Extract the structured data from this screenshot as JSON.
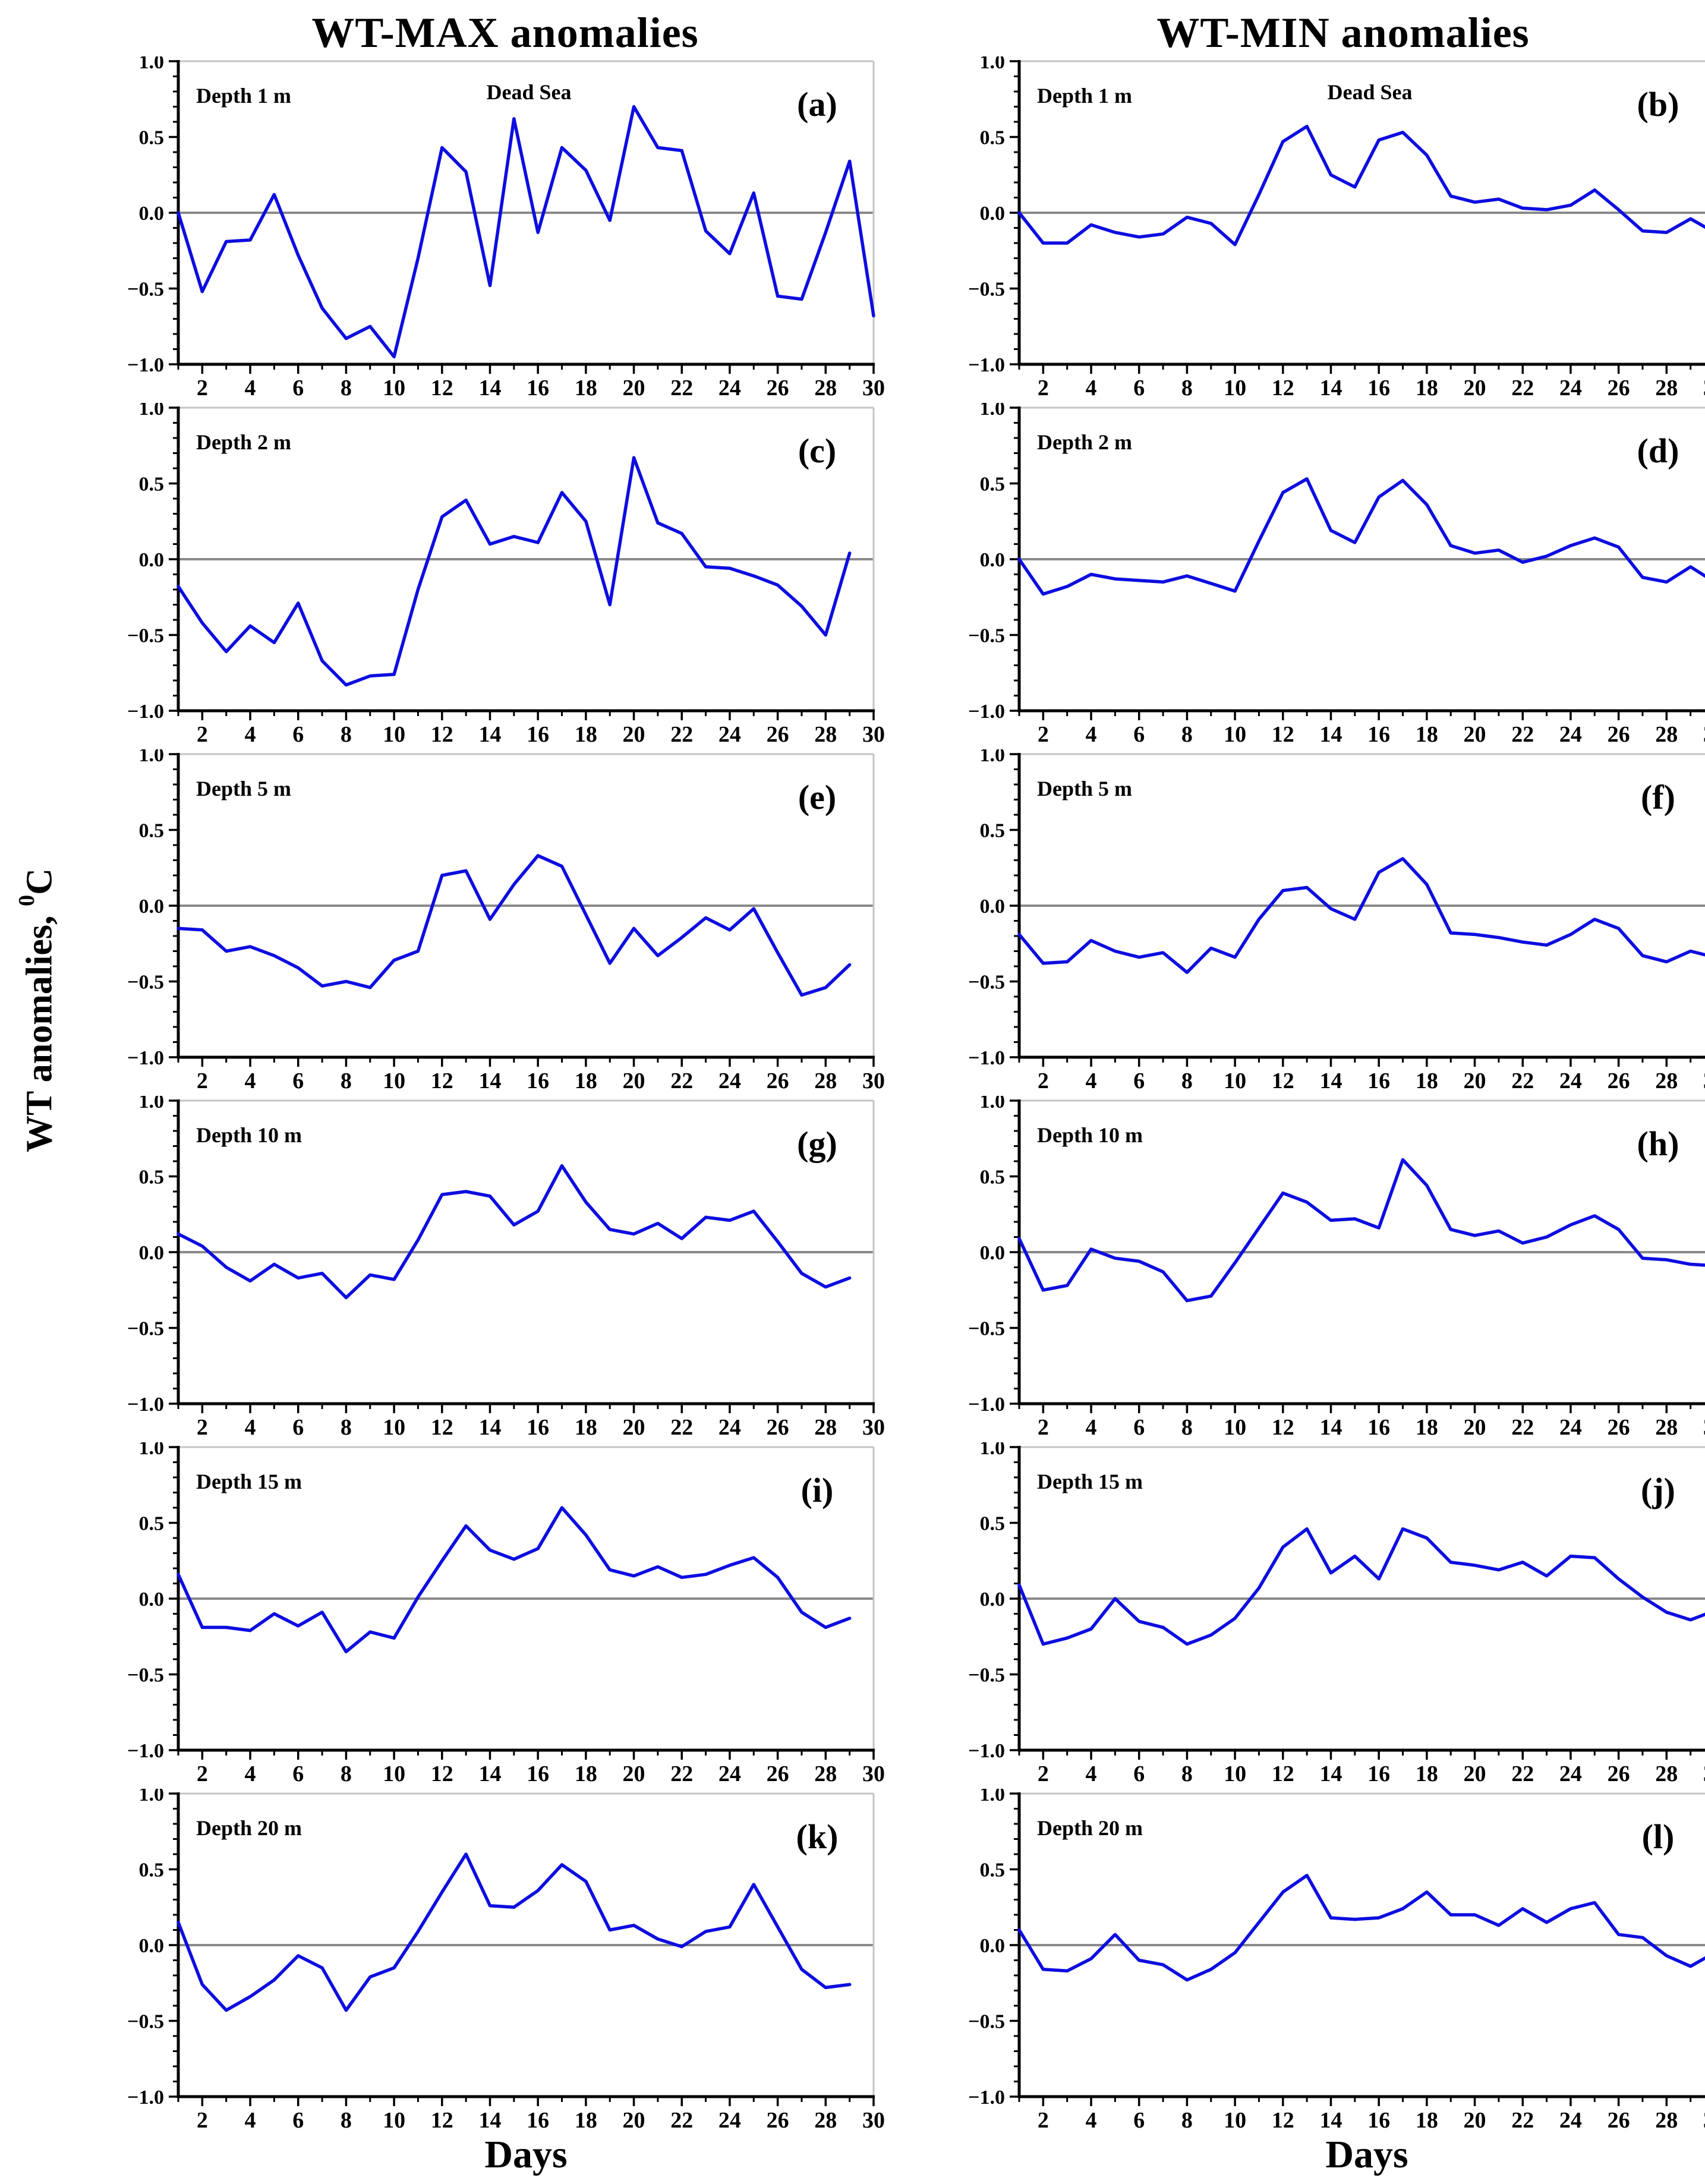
{
  "columns": [
    {
      "title": "WT-MAX anomalies"
    },
    {
      "title": "WT-MIN anomalies"
    }
  ],
  "y_axis_title": {
    "prefix": "WT anomalies, ",
    "sup": "0",
    "unit": "C"
  },
  "x_axis_title": "Days",
  "axes": {
    "y_tick_labels": [
      "1.0",
      "0.5",
      "0.0",
      "−0.5",
      "−1.0"
    ],
    "y_tick_values": [
      1.0,
      0.5,
      0.0,
      -0.5,
      -1.0
    ],
    "x_tick_labels": [
      "2",
      "4",
      "6",
      "8",
      "10",
      "12",
      "14",
      "16",
      "18",
      "20",
      "22",
      "24",
      "26",
      "28",
      "30"
    ],
    "x_minor_days": [
      1,
      3,
      5,
      7,
      9,
      11,
      13,
      15,
      17,
      19,
      21,
      23,
      25,
      27,
      29
    ],
    "xlim": [
      1,
      30
    ],
    "ylim": [
      -1.0,
      1.0
    ],
    "y_minor_step": 0.1,
    "grid": "off"
  },
  "colors": {
    "line": "#0d0de0",
    "zero_line": "#8a8a8a",
    "axis": "#000000",
    "box_light": "#c4c4c4",
    "text": "#000000"
  },
  "chart_data": {
    "type": "line",
    "title_left": "WT-MAX anomalies",
    "title_right": "WT-MIN anomalies",
    "xlabel": "Days",
    "ylabel": "WT anomalies, 0C",
    "x_start": 1,
    "x_step": 1,
    "ylim": [
      -1.0,
      1.0
    ],
    "panels": [
      {
        "letter": "(a)",
        "depth_label": "Depth 1 m",
        "annotation": "Dead Sea",
        "column": "WT-MAX",
        "row": 0,
        "col": 0,
        "values": [
          0.0,
          -0.52,
          -0.19,
          -0.18,
          0.12,
          -0.28,
          -0.63,
          -0.83,
          -0.75,
          -0.95,
          -0.3,
          0.43,
          0.27,
          -0.48,
          0.62,
          -0.13,
          0.43,
          0.28,
          -0.05,
          0.7,
          0.43,
          0.41,
          -0.12,
          -0.27,
          0.13,
          -0.55,
          -0.57,
          -0.13,
          0.34,
          -0.68
        ]
      },
      {
        "letter": "(b)",
        "depth_label": "Depth 1 m",
        "annotation": "Dead Sea",
        "column": "WT-MIN",
        "row": 0,
        "col": 1,
        "values": [
          0.0,
          -0.2,
          -0.2,
          -0.08,
          -0.13,
          -0.16,
          -0.14,
          -0.03,
          -0.07,
          -0.21,
          0.12,
          0.47,
          0.57,
          0.25,
          0.17,
          0.48,
          0.53,
          0.38,
          0.11,
          0.07,
          0.09,
          0.03,
          0.02,
          0.05,
          0.15,
          0.02,
          -0.12,
          -0.13,
          -0.04,
          -0.13
        ]
      },
      {
        "letter": "(c)",
        "depth_label": "Depth 2 m",
        "annotation": "",
        "column": "WT-MAX",
        "row": 1,
        "col": 0,
        "values": [
          -0.18,
          -0.42,
          -0.61,
          -0.44,
          -0.55,
          -0.29,
          -0.67,
          -0.83,
          -0.77,
          -0.76,
          -0.2,
          0.28,
          0.39,
          0.1,
          0.15,
          0.11,
          0.44,
          0.25,
          -0.3,
          0.67,
          0.24,
          0.17,
          -0.05,
          -0.06,
          -0.11,
          -0.17,
          -0.31,
          -0.5,
          0.04
        ]
      },
      {
        "letter": "(d)",
        "depth_label": "Depth 2 m",
        "annotation": "",
        "column": "WT-MIN",
        "row": 1,
        "col": 1,
        "values": [
          0.0,
          -0.23,
          -0.18,
          -0.1,
          -0.13,
          -0.14,
          -0.15,
          -0.11,
          -0.16,
          -0.21,
          0.12,
          0.44,
          0.53,
          0.19,
          0.11,
          0.41,
          0.52,
          0.36,
          0.09,
          0.04,
          0.06,
          -0.02,
          0.02,
          0.09,
          0.14,
          0.08,
          -0.12,
          -0.15,
          -0.05,
          -0.15
        ]
      },
      {
        "letter": "(e)",
        "depth_label": "Depth 5 m",
        "annotation": "",
        "column": "WT-MAX",
        "row": 2,
        "col": 0,
        "values": [
          -0.15,
          -0.16,
          -0.3,
          -0.27,
          -0.33,
          -0.41,
          -0.53,
          -0.5,
          -0.54,
          -0.36,
          -0.3,
          0.2,
          0.23,
          -0.09,
          0.14,
          0.33,
          0.26,
          -0.06,
          -0.38,
          -0.15,
          -0.33,
          -0.21,
          -0.08,
          -0.16,
          -0.02,
          -0.31,
          -0.59,
          -0.54,
          -0.39
        ]
      },
      {
        "letter": "(f)",
        "depth_label": "Depth 5 m",
        "annotation": "",
        "column": "WT-MIN",
        "row": 2,
        "col": 1,
        "values": [
          -0.19,
          -0.38,
          -0.37,
          -0.23,
          -0.3,
          -0.34,
          -0.31,
          -0.44,
          -0.28,
          -0.34,
          -0.09,
          0.1,
          0.12,
          -0.02,
          -0.09,
          0.22,
          0.31,
          0.14,
          -0.18,
          -0.19,
          -0.21,
          -0.24,
          -0.26,
          -0.19,
          -0.09,
          -0.15,
          -0.33,
          -0.37,
          -0.3,
          -0.34
        ]
      },
      {
        "letter": "(g)",
        "depth_label": "Depth 10 m",
        "annotation": "",
        "column": "WT-MAX",
        "row": 3,
        "col": 0,
        "values": [
          0.12,
          0.04,
          -0.1,
          -0.19,
          -0.08,
          -0.17,
          -0.14,
          -0.3,
          -0.15,
          -0.18,
          0.08,
          0.38,
          0.4,
          0.37,
          0.18,
          0.27,
          0.57,
          0.33,
          0.15,
          0.12,
          0.19,
          0.09,
          0.23,
          0.21,
          0.27,
          0.07,
          -0.14,
          -0.23,
          -0.17
        ]
      },
      {
        "letter": "(h)",
        "depth_label": "Depth 10 m",
        "annotation": "",
        "column": "WT-MIN",
        "row": 3,
        "col": 1,
        "values": [
          0.09,
          -0.25,
          -0.22,
          0.02,
          -0.04,
          -0.06,
          -0.13,
          -0.32,
          -0.29,
          -0.07,
          0.16,
          0.39,
          0.33,
          0.21,
          0.22,
          0.16,
          0.61,
          0.44,
          0.15,
          0.11,
          0.14,
          0.06,
          0.1,
          0.18,
          0.24,
          0.15,
          -0.04,
          -0.05,
          -0.08,
          -0.09
        ]
      },
      {
        "letter": "(i)",
        "depth_label": "Depth 15 m",
        "annotation": "",
        "column": "WT-MAX",
        "row": 4,
        "col": 0,
        "values": [
          0.16,
          -0.19,
          -0.19,
          -0.21,
          -0.1,
          -0.18,
          -0.09,
          -0.35,
          -0.22,
          -0.26,
          0.01,
          0.25,
          0.48,
          0.32,
          0.26,
          0.33,
          0.6,
          0.42,
          0.19,
          0.15,
          0.21,
          0.14,
          0.16,
          0.22,
          0.27,
          0.14,
          -0.09,
          -0.19,
          -0.13
        ]
      },
      {
        "letter": "(j)",
        "depth_label": "Depth 15 m",
        "annotation": "",
        "column": "WT-MIN",
        "row": 4,
        "col": 1,
        "values": [
          0.09,
          -0.3,
          -0.26,
          -0.2,
          0.0,
          -0.15,
          -0.19,
          -0.3,
          -0.24,
          -0.13,
          0.07,
          0.34,
          0.46,
          0.17,
          0.28,
          0.13,
          0.46,
          0.4,
          0.24,
          0.22,
          0.19,
          0.24,
          0.15,
          0.28,
          0.27,
          0.13,
          0.01,
          -0.09,
          -0.14,
          -0.08
        ]
      },
      {
        "letter": "(k)",
        "depth_label": "Depth 20 m",
        "annotation": "",
        "column": "WT-MAX",
        "row": 5,
        "col": 0,
        "values": [
          0.15,
          -0.26,
          -0.43,
          -0.34,
          -0.23,
          -0.07,
          -0.15,
          -0.43,
          -0.21,
          -0.15,
          0.09,
          0.35,
          0.6,
          0.26,
          0.25,
          0.36,
          0.53,
          0.42,
          0.1,
          0.13,
          0.04,
          -0.01,
          0.09,
          0.12,
          0.4,
          0.12,
          -0.16,
          -0.28,
          -0.26
        ]
      },
      {
        "letter": "(l)",
        "depth_label": "Depth 20 m",
        "annotation": "",
        "column": "WT-MIN",
        "row": 5,
        "col": 1,
        "values": [
          0.1,
          -0.16,
          -0.17,
          -0.09,
          0.07,
          -0.1,
          -0.13,
          -0.23,
          -0.16,
          -0.05,
          0.15,
          0.35,
          0.46,
          0.18,
          0.17,
          0.18,
          0.24,
          0.35,
          0.2,
          0.2,
          0.13,
          0.24,
          0.15,
          0.24,
          0.28,
          0.07,
          0.05,
          -0.07,
          -0.14,
          -0.05
        ]
      }
    ]
  }
}
